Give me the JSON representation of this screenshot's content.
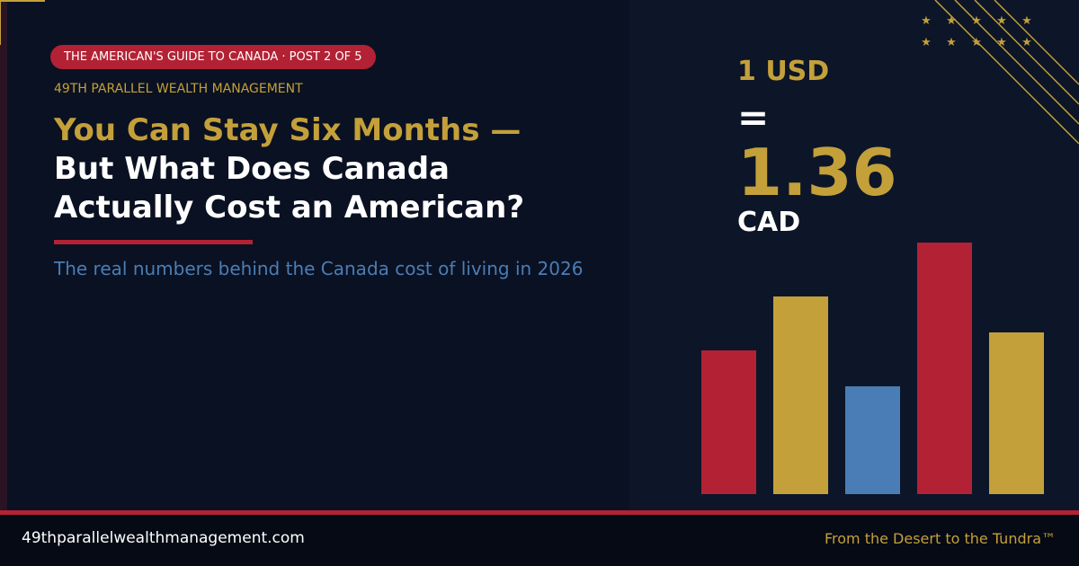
{
  "badge": "THE AMERICAN'S GUIDE TO CANADA · POST 2 OF 5",
  "brand": "49TH PARALLEL WEALTH MANAGEMENT",
  "title": {
    "highlight": "You Can Stay Six Months —",
    "rest": "But What Does Canada Actually Cost an American?"
  },
  "subtitle": "The real numbers behind the Canada cost of living in 2026",
  "rate": {
    "from": "1 USD",
    "equals": "=",
    "amount": "1.36",
    "to": "CAD"
  },
  "footer": {
    "url": "49thparallelwealthmanagement.com",
    "tagline": "From the Desert to the Tundra™"
  }
}
